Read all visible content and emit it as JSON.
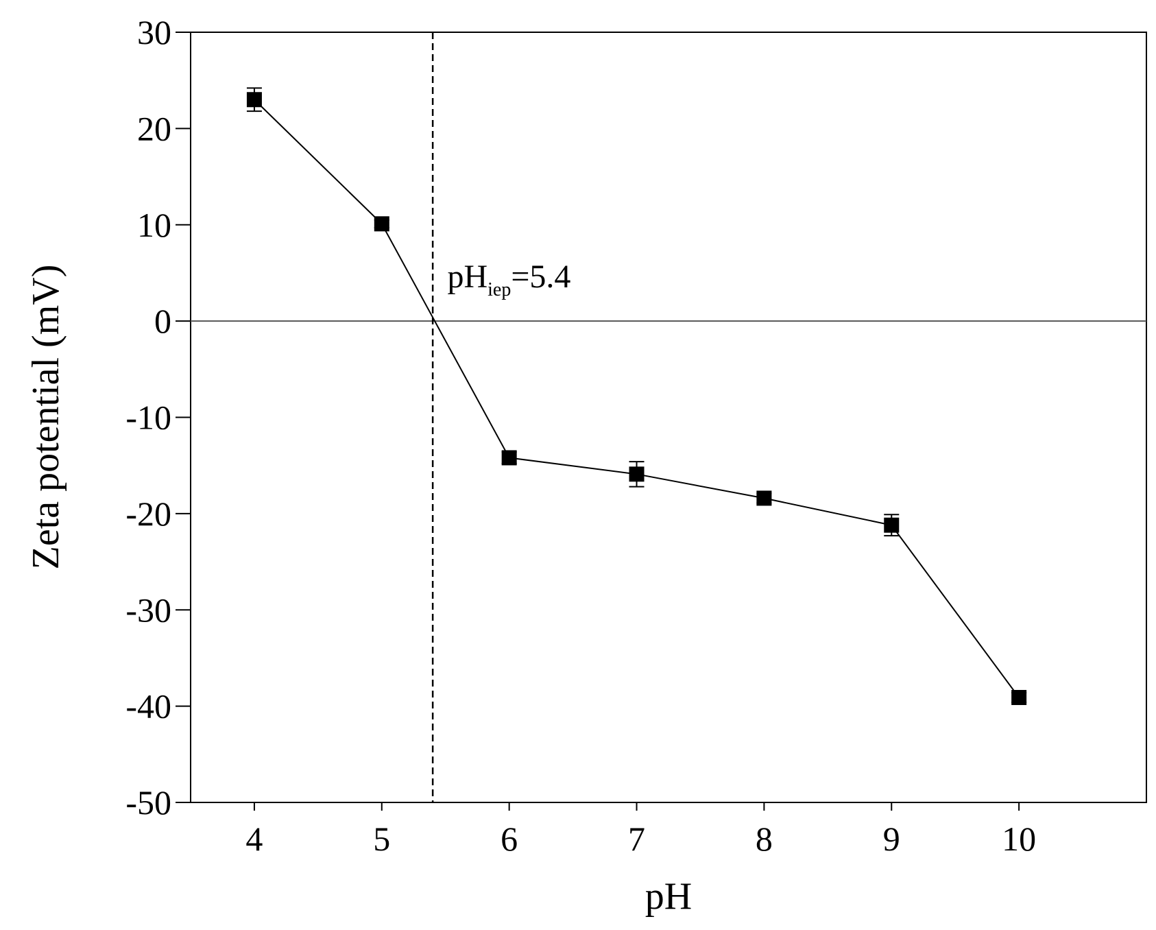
{
  "chart_data": {
    "type": "line",
    "title": "",
    "xlabel": "pH",
    "ylabel": "Zeta potential (mV)",
    "xlim": [
      3.5,
      11.0
    ],
    "ylim": [
      -50,
      30
    ],
    "x_ticks": [
      4,
      5,
      6,
      7,
      8,
      9,
      10
    ],
    "y_ticks": [
      30,
      20,
      10,
      0,
      -10,
      -20,
      -30,
      -40,
      -50
    ],
    "x_tick_labels": [
      "4",
      "5",
      "6",
      "7",
      "8",
      "9",
      "10"
    ],
    "y_tick_labels": [
      "30",
      "20",
      "10",
      "0",
      "-10",
      "-20",
      "-30",
      "-40",
      "-50"
    ],
    "series": [
      {
        "x": [
          4,
          5,
          6,
          7,
          8,
          9,
          10
        ],
        "y": [
          23.0,
          10.1,
          -14.2,
          -15.9,
          -18.4,
          -21.2,
          -39.1
        ],
        "error": [
          1.2,
          0.4,
          0.6,
          1.3,
          0.5,
          1.1,
          0.5
        ],
        "marker": "square",
        "color": "#000000"
      }
    ],
    "reference_lines": {
      "horizontal_y": 0,
      "vertical_dashed_x": 5.4
    },
    "annotation": {
      "main": "pH",
      "subscript": "iep",
      "suffix": "=5.4",
      "x": 5.45,
      "y": 3
    },
    "grid": false,
    "legend": "none"
  }
}
